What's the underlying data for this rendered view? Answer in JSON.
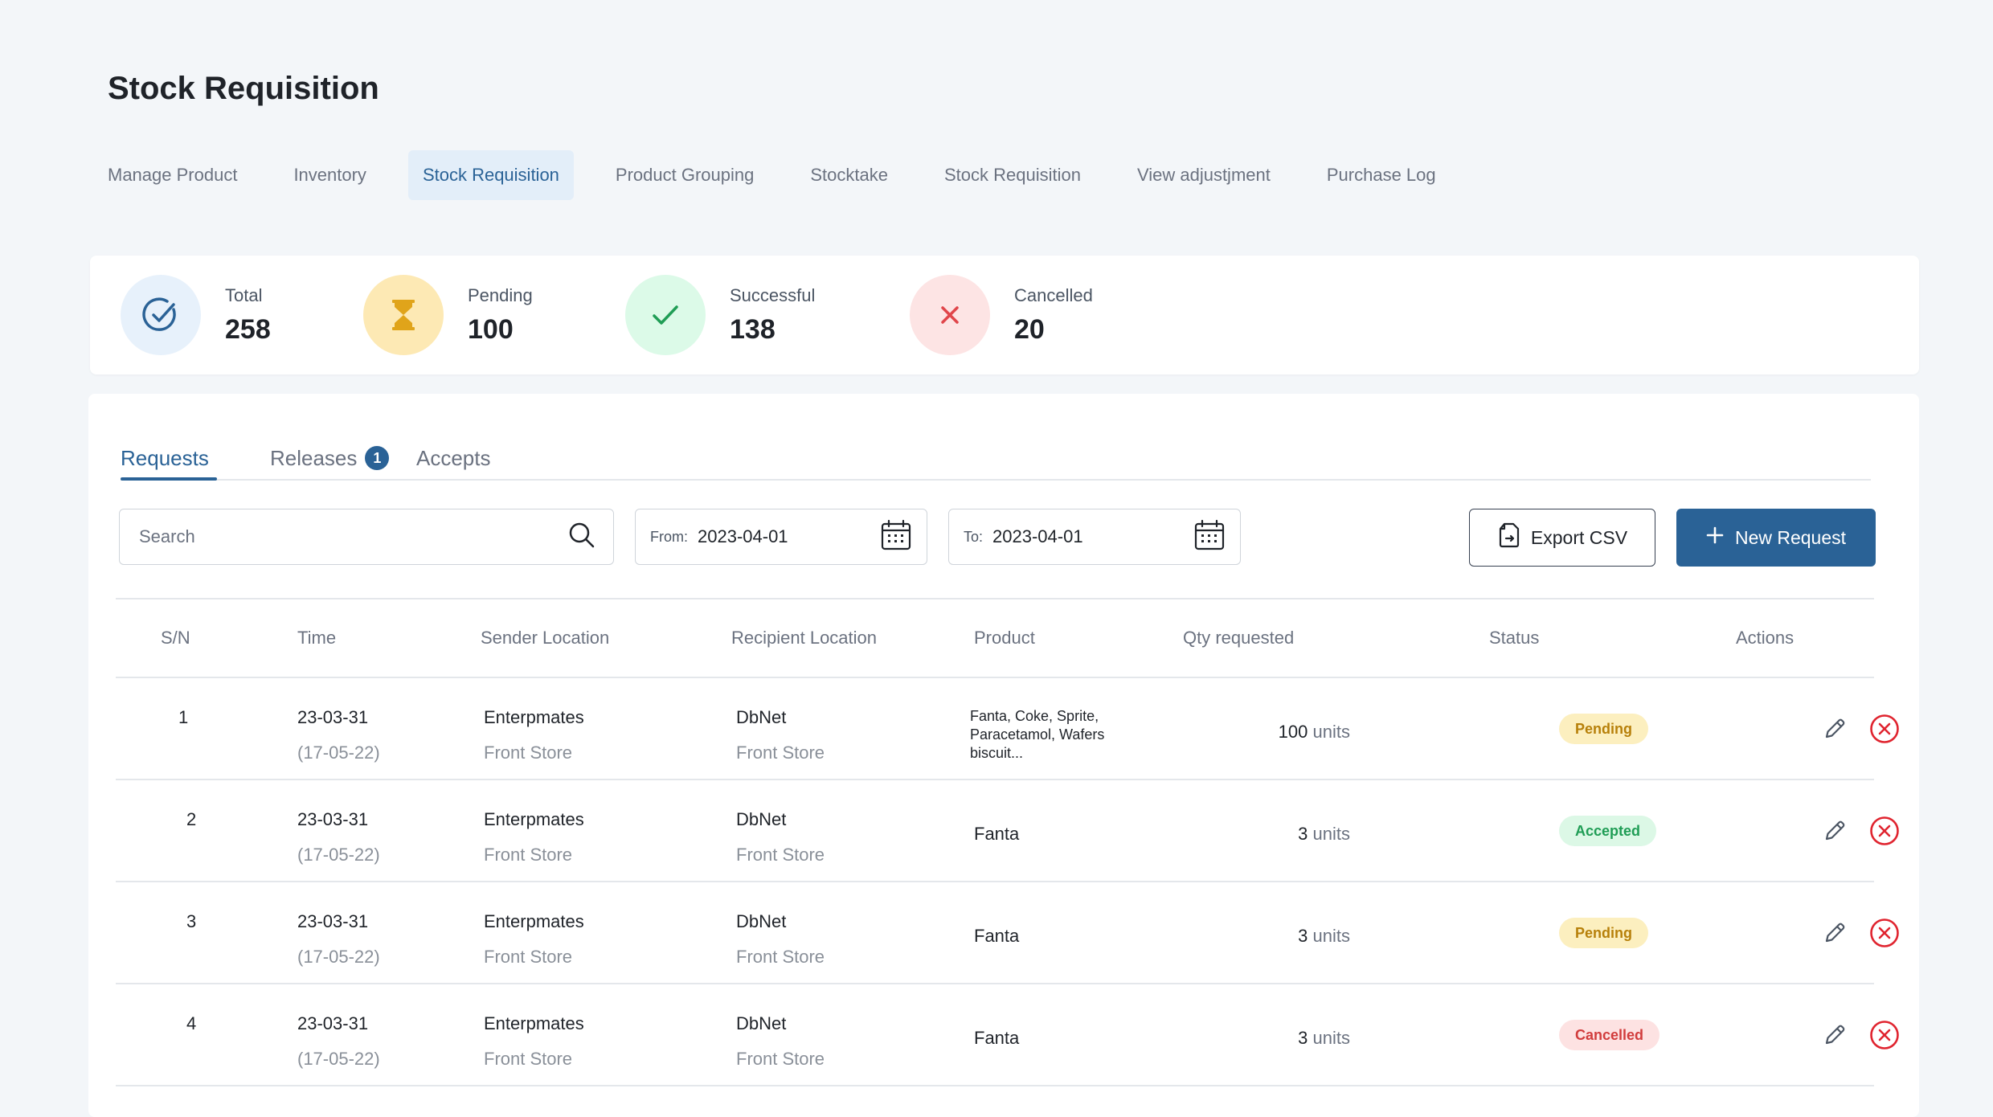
{
  "page": {
    "title": "Stock Requisition"
  },
  "nav": {
    "items": [
      {
        "label": "Manage Product"
      },
      {
        "label": "Inventory"
      },
      {
        "label": "Stock Requisition",
        "active": true
      },
      {
        "label": "Product Grouping"
      },
      {
        "label": "Stocktake"
      },
      {
        "label": "Stock Requisition"
      },
      {
        "label": "View adjustjment"
      },
      {
        "label": "Purchase Log"
      }
    ]
  },
  "stats": [
    {
      "label": "Total",
      "value": "258",
      "icon": "check-circle-icon",
      "bg": "#e7f1fb",
      "color": "#2a6296"
    },
    {
      "label": "Pending",
      "value": "100",
      "icon": "hourglass-icon",
      "bg": "#fde9b4",
      "color": "#e0a41a"
    },
    {
      "label": "Successful",
      "value": "138",
      "icon": "check-icon",
      "bg": "#dcfae8",
      "color": "#1f9d55"
    },
    {
      "label": "Cancelled",
      "value": "20",
      "icon": "close-icon",
      "bg": "#fde4e4",
      "color": "#e0454a"
    }
  ],
  "tabs": [
    {
      "label": "Requests",
      "active": true
    },
    {
      "label": "Releases",
      "badge": "1"
    },
    {
      "label": "Accepts"
    }
  ],
  "filters": {
    "search_placeholder": "Search",
    "from_label": "From:",
    "from_value": "2023-04-01",
    "to_label": "To:",
    "to_value": "2023-04-01"
  },
  "buttons": {
    "export_csv": "Export CSV",
    "new_request": "New Request"
  },
  "table": {
    "headers": [
      "S/N",
      "Time",
      "Sender Location",
      "Recipient Location",
      "Product",
      "Qty requested",
      "Status",
      "Actions"
    ],
    "rows": [
      {
        "sn": "1",
        "date": "23-03-31",
        "time_sub": "(17-05-22)",
        "sender": "Enterpmates",
        "sender_sub": "Front Store",
        "recipient": "DbNet",
        "recipient_sub": "Front Store",
        "product": "Fanta, Coke, Sprite, Paracetamol, Wafers biscuit...",
        "qty": "100",
        "unit": "units",
        "status": "Pending"
      },
      {
        "sn": "2",
        "date": "23-03-31",
        "time_sub": "(17-05-22)",
        "sender": "Enterpmates",
        "sender_sub": "Front Store",
        "recipient": "DbNet",
        "recipient_sub": "Front Store",
        "product": "Fanta",
        "qty": "3",
        "unit": "units",
        "status": "Accepted"
      },
      {
        "sn": "3",
        "date": "23-03-31",
        "time_sub": "(17-05-22)",
        "sender": "Enterpmates",
        "sender_sub": "Front Store",
        "recipient": "DbNet",
        "recipient_sub": "Front Store",
        "product": "Fanta",
        "qty": "3",
        "unit": "units",
        "status": "Pending"
      },
      {
        "sn": "4",
        "date": "23-03-31",
        "time_sub": "(17-05-22)",
        "sender": "Enterpmates",
        "sender_sub": "Front Store",
        "recipient": "DbNet",
        "recipient_sub": "Front Store",
        "product": "Fanta",
        "qty": "3",
        "unit": "units",
        "status": "Cancelled"
      }
    ]
  },
  "colors": {
    "accent": "#2a6296",
    "page_bg": "#f3f6f9"
  }
}
